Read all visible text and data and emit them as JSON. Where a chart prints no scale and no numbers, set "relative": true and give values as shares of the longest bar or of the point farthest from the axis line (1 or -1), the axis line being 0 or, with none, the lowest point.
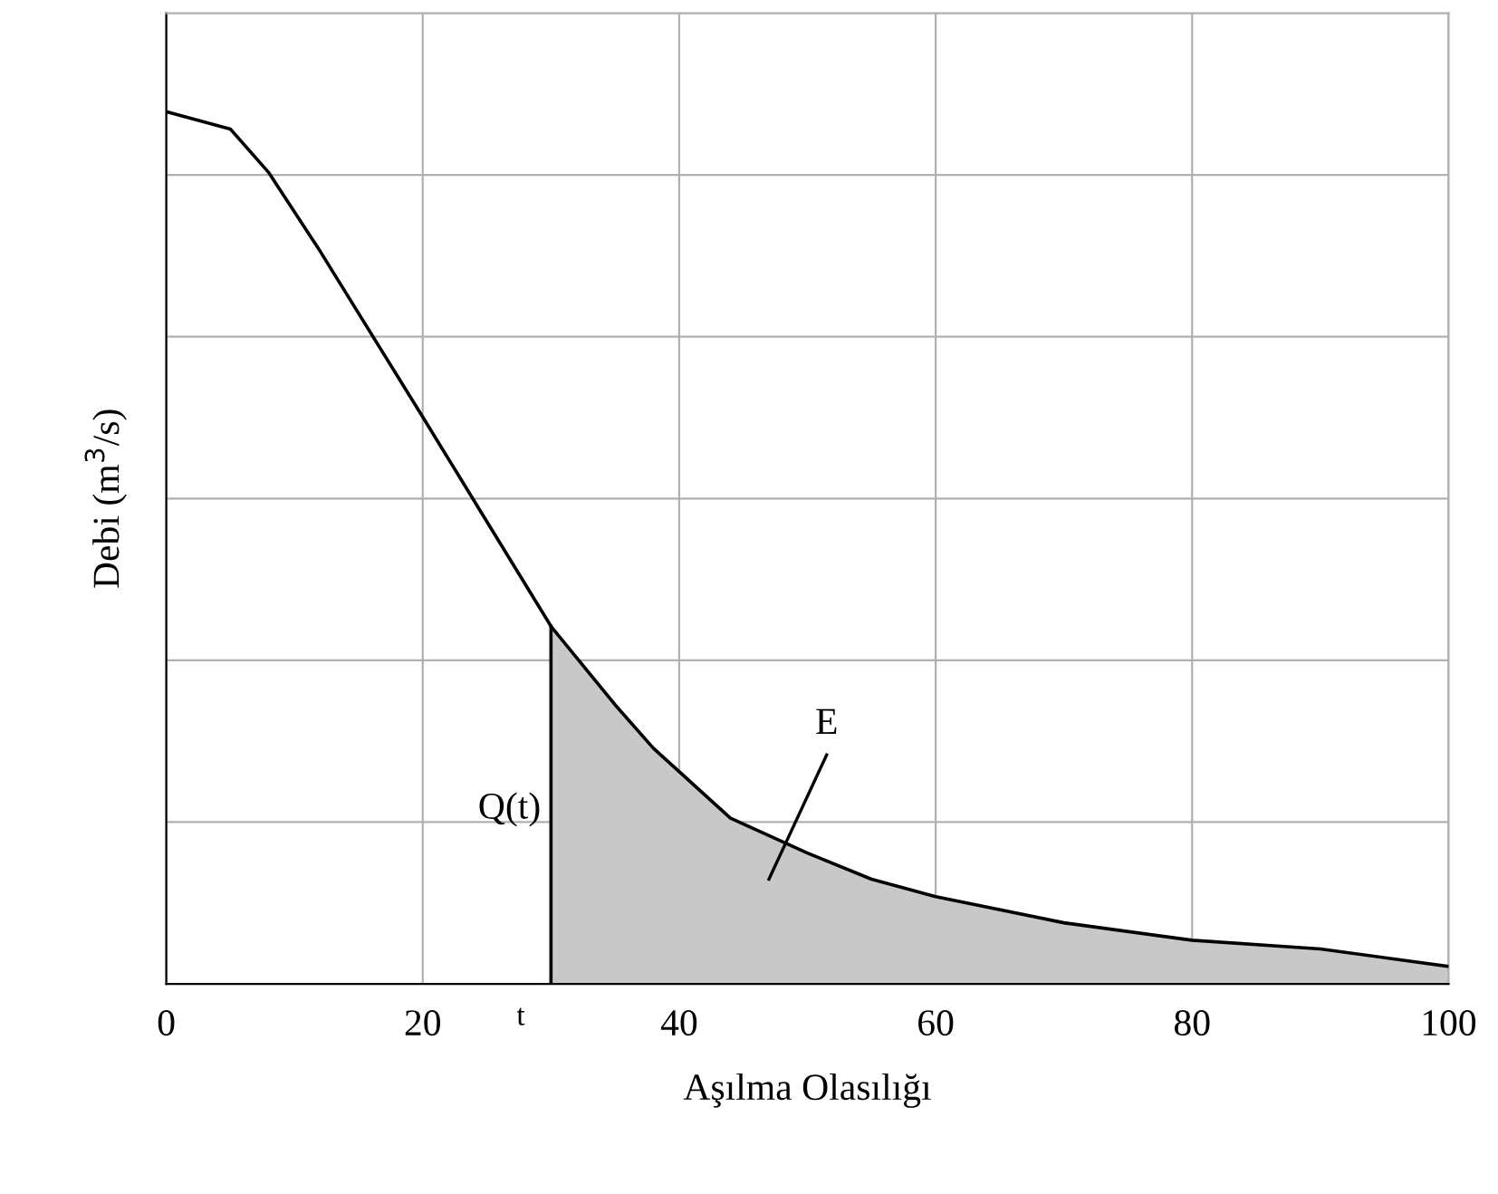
{
  "chart_data": {
    "type": "line",
    "relative": true,
    "xlabel": "Aşılma Olasılığı",
    "ylabel": "Debi (m$^{3}$/s)",
    "xlim": [
      0,
      100
    ],
    "xticks": [
      0,
      20,
      40,
      60,
      80,
      100
    ],
    "grid": true,
    "series": [
      {
        "color": "#000000",
        "x": [
          0,
          5,
          8,
          12,
          20,
          25,
          30,
          35,
          38,
          44,
          50,
          55,
          60,
          70,
          80,
          90,
          100
        ],
        "values": [
          1.0,
          0.98,
          0.93,
          0.84,
          0.65,
          0.53,
          0.41,
          0.32,
          0.27,
          0.19,
          0.15,
          0.12,
          0.1,
          0.07,
          0.05,
          0.04,
          0.02
        ]
      },
      {
        "type": "area",
        "name": "E",
        "color": "#c8c8c8",
        "x": [
          30,
          35,
          38,
          44,
          50,
          55,
          60,
          70,
          80,
          90,
          100
        ],
        "values": [
          0.41,
          0.32,
          0.27,
          0.19,
          0.15,
          0.12,
          0.1,
          0.07,
          0.05,
          0.04,
          0.02
        ]
      }
    ],
    "annotations": [
      {
        "text": "Q(t)",
        "x": 30,
        "y": 0.2
      },
      {
        "text": "t",
        "x": 30,
        "y": 0
      }
    ]
  }
}
